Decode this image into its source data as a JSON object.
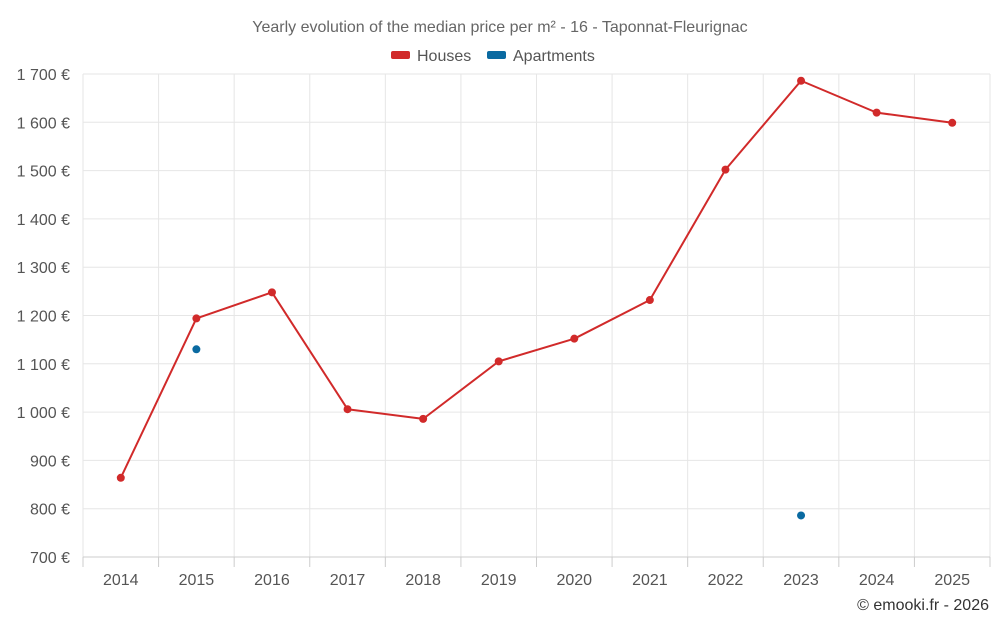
{
  "chart_data": {
    "type": "line",
    "title": "Yearly evolution of the median price per m² - 16 - Taponnat-Fleurignac",
    "categories": [
      "2014",
      "2015",
      "2016",
      "2017",
      "2018",
      "2019",
      "2020",
      "2021",
      "2022",
      "2023",
      "2024",
      "2025"
    ],
    "series": [
      {
        "name": "Houses",
        "color": "#d12a2a",
        "values": [
          864,
          1194,
          1248,
          1006,
          986,
          1105,
          1152,
          1232,
          1502,
          1686,
          1620,
          1599
        ]
      },
      {
        "name": "Apartments",
        "color": "#0a6aa1",
        "values": [
          null,
          1130,
          null,
          null,
          null,
          null,
          null,
          null,
          null,
          786,
          null,
          null
        ]
      }
    ],
    "ylim": [
      700,
      1700
    ],
    "yticks": [
      700,
      800,
      900,
      1000,
      1100,
      1200,
      1300,
      1400,
      1500,
      1600,
      1700
    ],
    "ytick_labels": [
      "700 €",
      "800 €",
      "900 €",
      "1 000 €",
      "1 100 €",
      "1 200 €",
      "1 300 €",
      "1 400 €",
      "1 500 €",
      "1 600 €",
      "1 700 €"
    ],
    "xlabel": "",
    "ylabel": "",
    "grid": true,
    "legend_position": "top-center"
  },
  "credit": "© emooki.fr - 2026"
}
